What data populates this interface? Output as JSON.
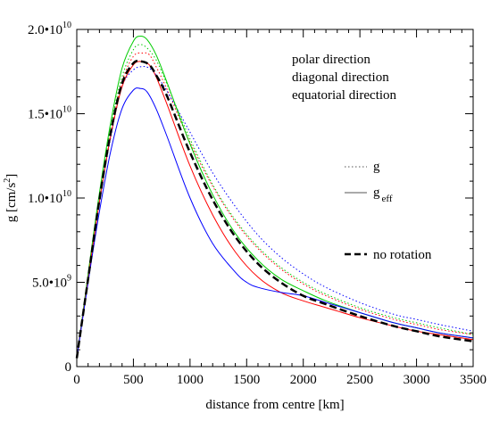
{
  "chart_data": {
    "type": "line",
    "xlabel": "distance from centre [km]",
    "ylabel": {
      "main": "g [cm/s",
      "sup": "2",
      "tail": "]"
    },
    "xlim": [
      0,
      3500
    ],
    "ylim": [
      0,
      20000000000.0
    ],
    "grid": false,
    "x_ticks": [
      {
        "value": 0,
        "label": "0"
      },
      {
        "value": 500,
        "label": "500"
      },
      {
        "value": 1000,
        "label": "1000"
      },
      {
        "value": 1500,
        "label": "1500"
      },
      {
        "value": 2000,
        "label": "2000"
      },
      {
        "value": 2500,
        "label": "2500"
      },
      {
        "value": 3000,
        "label": "3000"
      },
      {
        "value": 3500,
        "label": "3500"
      }
    ],
    "y_ticks": [
      {
        "value": 0,
        "mantissa": "0",
        "exp": ""
      },
      {
        "value": 5000000000.0,
        "mantissa": "5.0•10",
        "exp": "9"
      },
      {
        "value": 10000000000.0,
        "mantissa": "1.0•10",
        "exp": "10"
      },
      {
        "value": 15000000000.0,
        "mantissa": "1.5•10",
        "exp": "10"
      },
      {
        "value": 20000000000.0,
        "mantissa": "2.0•10",
        "exp": "10"
      }
    ],
    "direction_legend": [
      {
        "label": "polar direction",
        "color": "#00cc00"
      },
      {
        "label": "diagonal direction",
        "color": "#ff0000"
      },
      {
        "label": "equatorial direction",
        "color": "#0000ff"
      }
    ],
    "style_legend": [
      {
        "label": "g",
        "sub": "",
        "style": "dotted"
      },
      {
        "label": "g",
        "sub": "eff",
        "style": "solid"
      },
      {
        "label": "no rotation",
        "sub": "",
        "style": "dashed"
      }
    ],
    "series": [
      {
        "direction": "polar",
        "kind": "g_eff",
        "style": "solid",
        "color": "#00cc00",
        "x": [
          0,
          100,
          200,
          300,
          400,
          500,
          560,
          620,
          700,
          800,
          1000,
          1200,
          1400,
          1600,
          1800,
          2000,
          2200,
          2500,
          2800,
          3000,
          3200,
          3500
        ],
        "y": [
          500000000.0,
          5500000000.0,
          10300000000.0,
          14500000000.0,
          17700000000.0,
          19300000000.0,
          19600000000.0,
          19400000000.0,
          18500000000.0,
          16800000000.0,
          13200000000.0,
          10200000000.0,
          7900000000.0,
          6300000000.0,
          5200000000.0,
          4500000000.0,
          3900000000.0,
          3200000000.0,
          2600000000.0,
          2300000000.0,
          2000000000.0,
          1700000000.0
        ]
      },
      {
        "direction": "polar",
        "kind": "g",
        "style": "dotted",
        "color": "#00cc00",
        "x": [
          0,
          100,
          200,
          300,
          400,
          500,
          560,
          620,
          700,
          800,
          1000,
          1200,
          1400,
          1600,
          1800,
          2000,
          2200,
          2500,
          2800,
          3000,
          3200,
          3500
        ],
        "y": [
          500000000.0,
          5400000000.0,
          10100000000.0,
          14200000000.0,
          17200000000.0,
          18800000000.0,
          19100000000.0,
          18900000000.0,
          18200000000.0,
          16700000000.0,
          13500000000.0,
          10800000000.0,
          8700000000.0,
          7100000000.0,
          5900000000.0,
          5000000000.0,
          4300000000.0,
          3500000000.0,
          2900000000.0,
          2600000000.0,
          2300000000.0,
          1900000000.0
        ]
      },
      {
        "direction": "diagonal",
        "kind": "g_eff",
        "style": "solid",
        "color": "#ff0000",
        "x": [
          0,
          100,
          200,
          300,
          400,
          500,
          570,
          640,
          700,
          800,
          1000,
          1200,
          1400,
          1600,
          1800,
          2000,
          2200,
          2500,
          2800,
          3000,
          3200,
          3500
        ],
        "y": [
          500000000.0,
          5200000000.0,
          9800000000.0,
          13700000000.0,
          16600000000.0,
          17900000000.0,
          18100000000.0,
          17900000000.0,
          17200000000.0,
          15500000000.0,
          11900000000.0,
          9000000000.0,
          6800000000.0,
          5300000000.0,
          4400000000.0,
          3900000000.0,
          3500000000.0,
          2900000000.0,
          2400000000.0,
          2100000000.0,
          1900000000.0,
          1600000000.0
        ]
      },
      {
        "direction": "diagonal",
        "kind": "g",
        "style": "dotted",
        "color": "#ff0000",
        "x": [
          0,
          100,
          200,
          300,
          400,
          500,
          580,
          640,
          700,
          800,
          1000,
          1200,
          1400,
          1600,
          1800,
          2000,
          2200,
          2500,
          2800,
          3000,
          3200,
          3500
        ],
        "y": [
          500000000.0,
          5200000000.0,
          9800000000.0,
          13800000000.0,
          16900000000.0,
          18400000000.0,
          18600000000.0,
          18500000000.0,
          17800000000.0,
          16400000000.0,
          13300000000.0,
          10700000000.0,
          8600000000.0,
          7000000000.0,
          5800000000.0,
          4900000000.0,
          4200000000.0,
          3400000000.0,
          2800000000.0,
          2500000000.0,
          2200000000.0,
          1900000000.0
        ]
      },
      {
        "direction": "equatorial",
        "kind": "g_eff",
        "style": "solid",
        "color": "#0000ff",
        "x": [
          0,
          100,
          200,
          300,
          400,
          500,
          560,
          620,
          700,
          800,
          1000,
          1200,
          1400,
          1500,
          1600,
          1800,
          2000,
          2200,
          2500,
          2800,
          3000,
          3200,
          3500
        ],
        "y": [
          500000000.0,
          5000000000.0,
          9200000000.0,
          12800000000.0,
          15300000000.0,
          16400000000.0,
          16500000000.0,
          16300000000.0,
          15300000000.0,
          13600000000.0,
          10000000000.0,
          7300000000.0,
          5600000000.0,
          5000000000.0,
          4700000000.0,
          4400000000.0,
          4200000000.0,
          3800000000.0,
          3200000000.0,
          2600000000.0,
          2300000000.0,
          2000000000.0,
          1700000000.0
        ]
      },
      {
        "direction": "equatorial",
        "kind": "g",
        "style": "dotted",
        "color": "#0000ff",
        "x": [
          0,
          100,
          200,
          300,
          400,
          500,
          580,
          640,
          700,
          800,
          1000,
          1200,
          1400,
          1600,
          1800,
          2000,
          2200,
          2500,
          2800,
          3000,
          3200,
          3500
        ],
        "y": [
          500000000.0,
          5200000000.0,
          9700000000.0,
          13600000000.0,
          16600000000.0,
          17600000000.0,
          17800000000.0,
          17700000000.0,
          17300000000.0,
          16300000000.0,
          13900000000.0,
          11500000000.0,
          9500000000.0,
          7800000000.0,
          6500000000.0,
          5500000000.0,
          4700000000.0,
          3800000000.0,
          3100000000.0,
          2800000000.0,
          2500000000.0,
          2100000000.0
        ]
      },
      {
        "direction": "none",
        "kind": "no_rotation",
        "style": "dashed",
        "color": "#000000",
        "x": [
          0,
          100,
          200,
          300,
          400,
          500,
          570,
          640,
          700,
          800,
          1000,
          1200,
          1400,
          1600,
          1800,
          2000,
          2200,
          2500,
          2800,
          3000,
          3200,
          3500
        ],
        "y": [
          500000000.0,
          5200000000.0,
          9900000000.0,
          13900000000.0,
          16800000000.0,
          18000000000.0,
          18100000000.0,
          17900000000.0,
          17300000000.0,
          16000000000.0,
          12700000000.0,
          9900000000.0,
          7700000000.0,
          6100000000.0,
          5000000000.0,
          4200000000.0,
          3700000000.0,
          3000000000.0,
          2400000000.0,
          2100000000.0,
          1800000000.0,
          1500000000.0
        ]
      }
    ]
  }
}
